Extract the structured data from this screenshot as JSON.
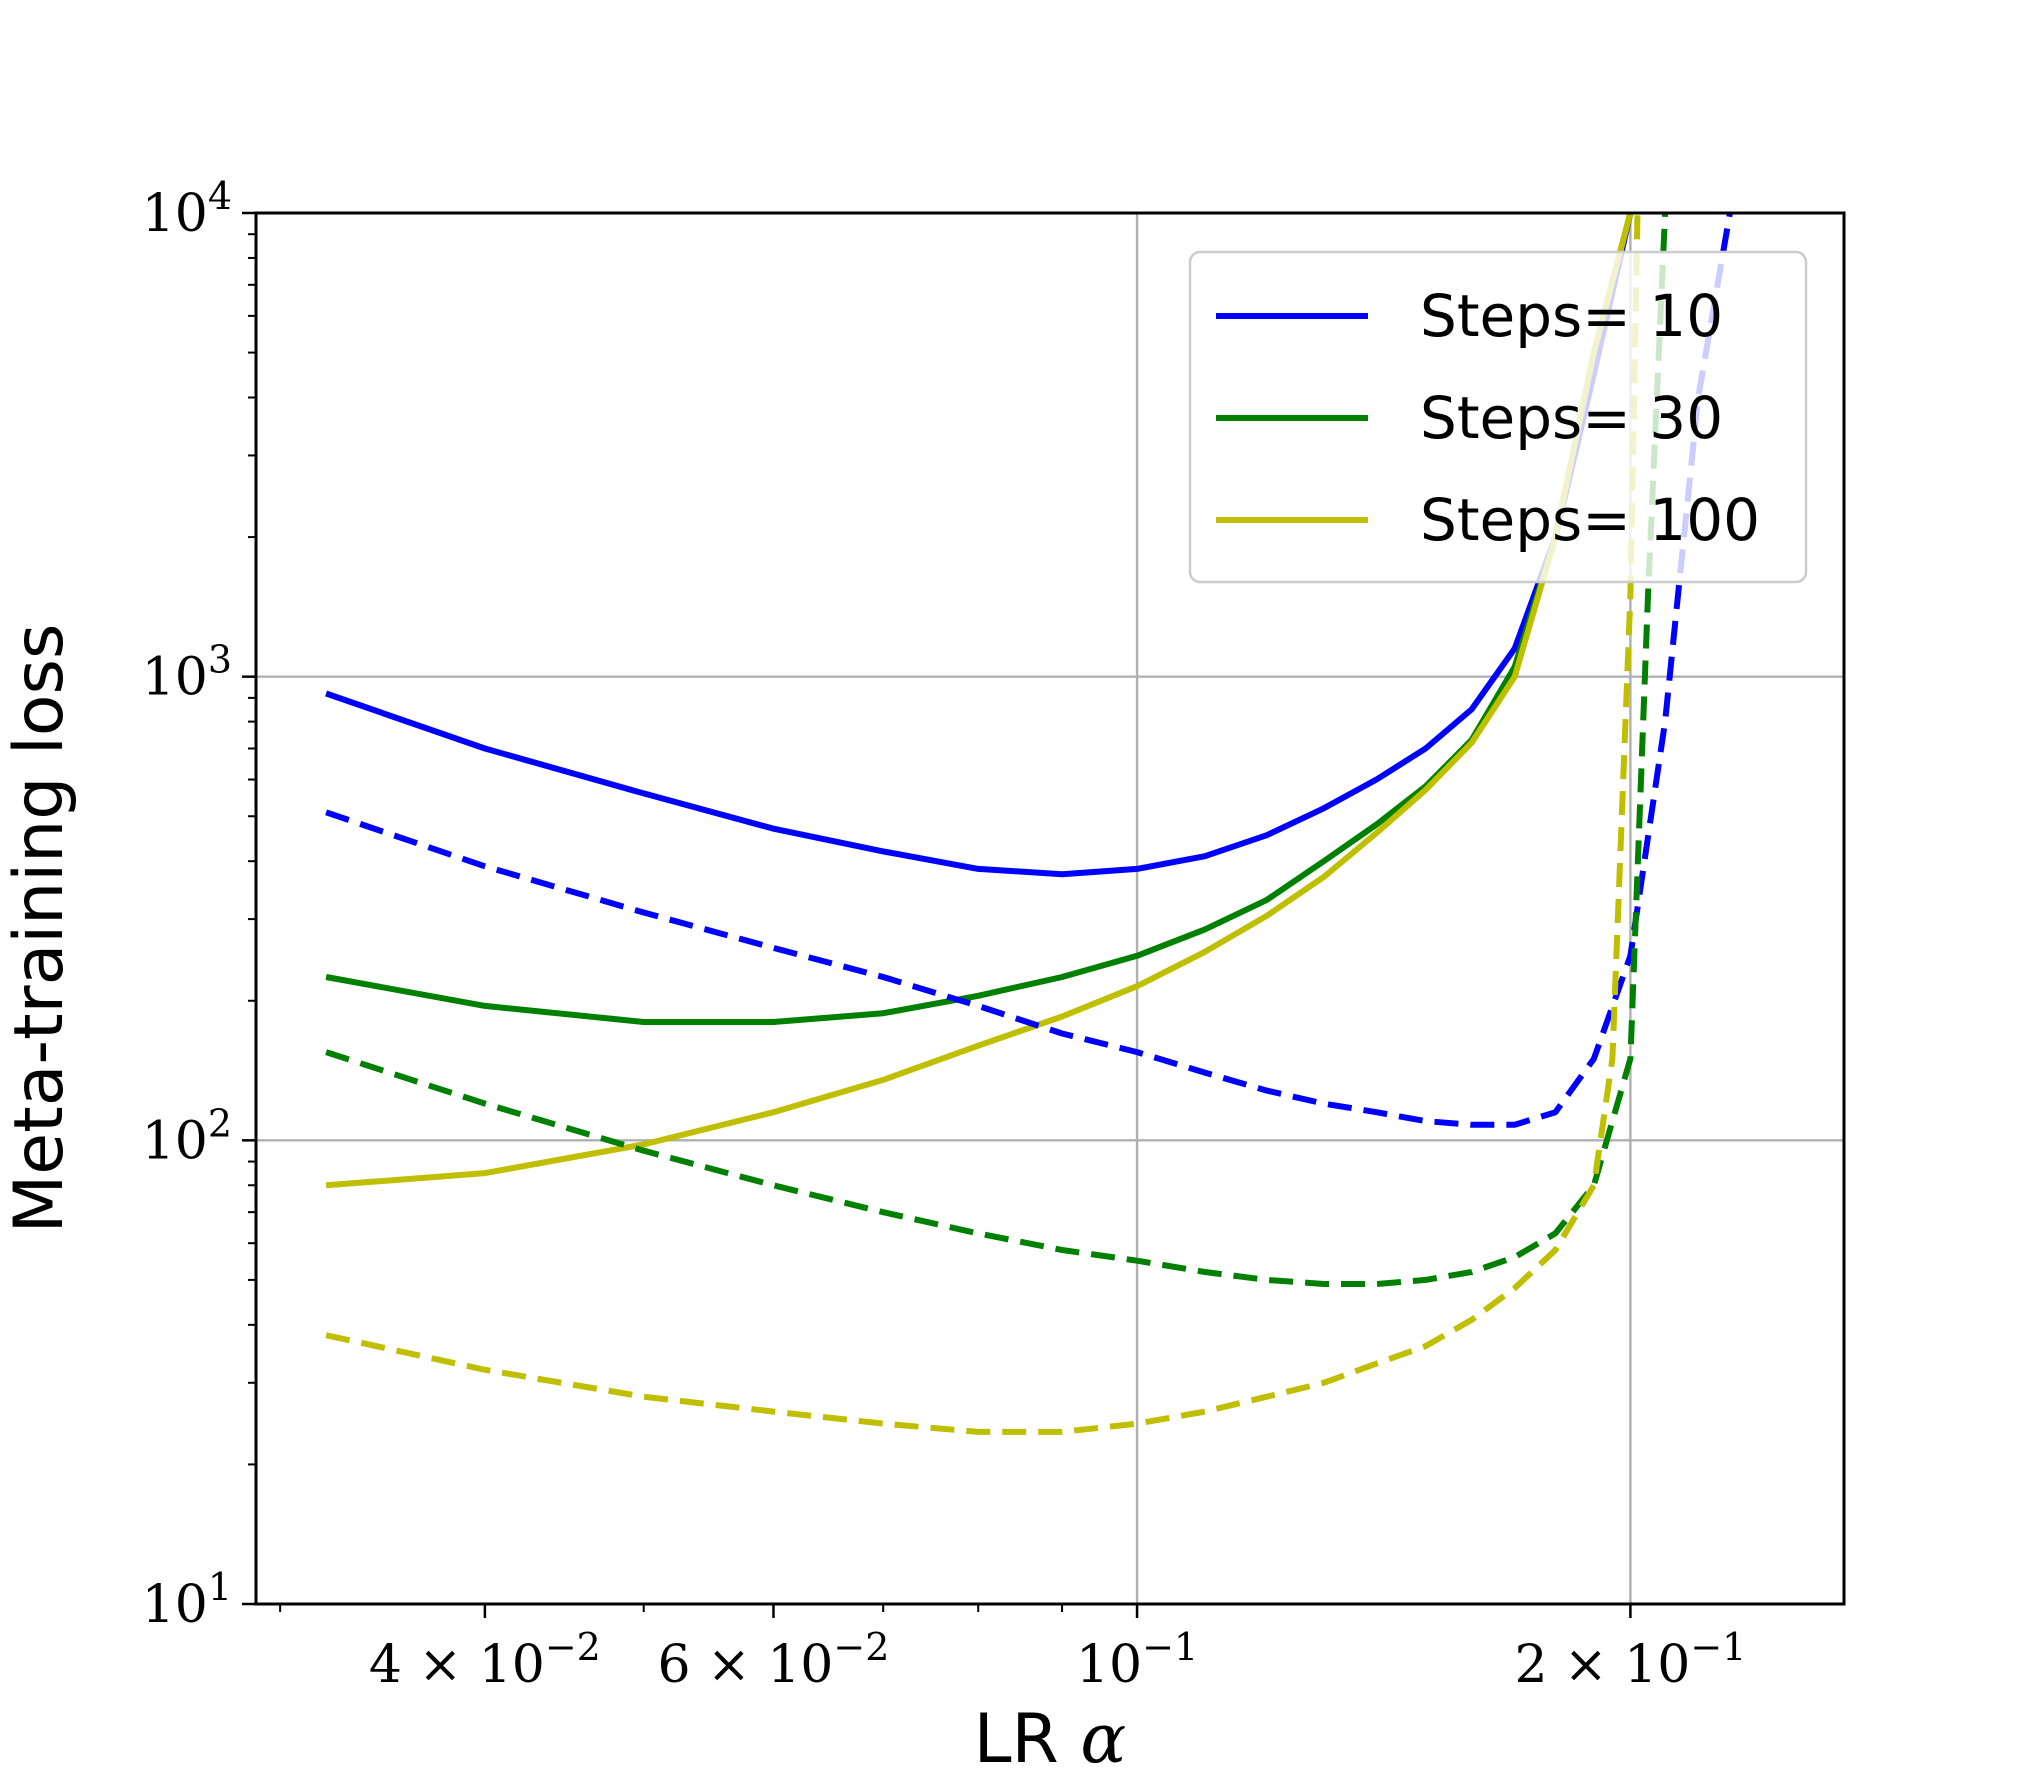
{
  "chart_data": {
    "type": "line",
    "xlabel": "LR",
    "xlabel_symbol": "α",
    "ylabel": "Meta-training loss",
    "xscale": "log",
    "yscale": "log",
    "xlim": [
      0.029,
      0.27
    ],
    "ylim": [
      10,
      10000
    ],
    "grid": true,
    "legend_position": "top-right",
    "x_major_ticks": [
      {
        "value": 0.04,
        "mantissa": "4",
        "times": "×",
        "base": "10",
        "exp": "−2"
      },
      {
        "value": 0.06,
        "mantissa": "6",
        "times": "×",
        "base": "10",
        "exp": "−2"
      },
      {
        "value": 0.1,
        "mantissa": "",
        "times": "",
        "base": "10",
        "exp": "−1"
      },
      {
        "value": 0.2,
        "mantissa": "2",
        "times": "×",
        "base": "10",
        "exp": "−1"
      }
    ],
    "y_major_ticks": [
      {
        "value": 10,
        "base": "10",
        "exp": "1"
      },
      {
        "value": 100,
        "base": "10",
        "exp": "2"
      },
      {
        "value": 1000,
        "base": "10",
        "exp": "3"
      },
      {
        "value": 10000,
        "base": "10",
        "exp": "4"
      }
    ],
    "series": [
      {
        "name": "Steps= 10",
        "color": "#0000ff",
        "style": "solid",
        "x": [
          0.032,
          0.04,
          0.05,
          0.06,
          0.07,
          0.08,
          0.09,
          0.1,
          0.11,
          0.12,
          0.13,
          0.14,
          0.15,
          0.16,
          0.17,
          0.18,
          0.19,
          0.2
        ],
        "y": [
          920,
          700,
          560,
          470,
          420,
          385,
          375,
          385,
          410,
          455,
          520,
          600,
          700,
          850,
          1150,
          2000,
          4500,
          10000
        ]
      },
      {
        "name": "Steps= 30",
        "color": "#008000",
        "style": "solid",
        "x": [
          0.032,
          0.04,
          0.05,
          0.06,
          0.07,
          0.08,
          0.09,
          0.1,
          0.11,
          0.12,
          0.13,
          0.14,
          0.15,
          0.16,
          0.17,
          0.18,
          0.19,
          0.2
        ],
        "y": [
          225,
          195,
          180,
          180,
          188,
          205,
          225,
          250,
          285,
          330,
          400,
          480,
          580,
          730,
          1050,
          2000,
          5000,
          10000
        ]
      },
      {
        "name": "Steps= 100",
        "color": "#bfbf00",
        "style": "solid",
        "x": [
          0.032,
          0.04,
          0.05,
          0.06,
          0.07,
          0.08,
          0.09,
          0.1,
          0.11,
          0.12,
          0.13,
          0.14,
          0.15,
          0.16,
          0.17,
          0.18,
          0.19,
          0.2
        ],
        "y": [
          80,
          85,
          98,
          115,
          135,
          160,
          185,
          215,
          255,
          305,
          370,
          460,
          570,
          720,
          1000,
          2000,
          5000,
          10000
        ]
      },
      {
        "name": "",
        "color": "#0000ff",
        "style": "dashed",
        "x": [
          0.032,
          0.04,
          0.05,
          0.06,
          0.07,
          0.08,
          0.09,
          0.1,
          0.11,
          0.12,
          0.13,
          0.14,
          0.15,
          0.16,
          0.17,
          0.18,
          0.19,
          0.2,
          0.21,
          0.22,
          0.23
        ],
        "y": [
          510,
          390,
          310,
          260,
          225,
          195,
          170,
          155,
          140,
          128,
          120,
          115,
          110,
          108,
          108,
          115,
          150,
          250,
          800,
          4000,
          10000
        ]
      },
      {
        "name": "",
        "color": "#008000",
        "style": "dashed",
        "x": [
          0.032,
          0.04,
          0.05,
          0.06,
          0.07,
          0.08,
          0.09,
          0.1,
          0.11,
          0.12,
          0.13,
          0.14,
          0.15,
          0.16,
          0.17,
          0.18,
          0.19,
          0.2,
          0.205,
          0.21
        ],
        "y": [
          155,
          120,
          95,
          80,
          70,
          63,
          58,
          55,
          52,
          50,
          49,
          49,
          50,
          52,
          56,
          63,
          80,
          150,
          1500,
          10000
        ]
      },
      {
        "name": "",
        "color": "#bfbf00",
        "style": "dashed",
        "x": [
          0.032,
          0.04,
          0.05,
          0.06,
          0.07,
          0.08,
          0.09,
          0.1,
          0.11,
          0.12,
          0.13,
          0.14,
          0.15,
          0.16,
          0.17,
          0.18,
          0.19,
          0.195,
          0.2,
          0.202
        ],
        "y": [
          38,
          32,
          28,
          26,
          24.5,
          23.5,
          23.5,
          24.5,
          26,
          28,
          30,
          33,
          36,
          41,
          48,
          58,
          80,
          150,
          1500,
          10000
        ]
      }
    ]
  }
}
